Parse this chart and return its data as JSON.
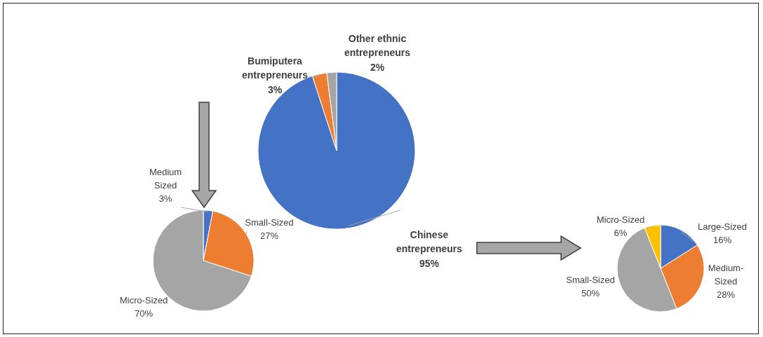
{
  "chart_data": [
    {
      "type": "pie",
      "categories": [
        "Chinese entrepreneurs",
        "Bumiputera entrepreneurs",
        "Other ethnic entrepreneurs"
      ],
      "values": [
        95,
        3,
        2
      ],
      "colors": [
        "#4472c4",
        "#ed7d31",
        "#a5a5a5"
      ],
      "value_labels": [
        "95%",
        "3%",
        "2%"
      ]
    },
    {
      "type": "pie",
      "categories": [
        "Medium Sized",
        "Small-Sized",
        "Micro-Sized"
      ],
      "values": [
        3,
        27,
        70
      ],
      "colors": [
        "#4472c4",
        "#ed7d31",
        "#a5a5a5"
      ],
      "value_labels": [
        "3%",
        "27%",
        "70%"
      ]
    },
    {
      "type": "pie",
      "categories": [
        "Large-Sized",
        "Medium-Sized",
        "Small-Sized",
        "Micro-Sized"
      ],
      "values": [
        16,
        28,
        50,
        6
      ],
      "colors": [
        "#4472c4",
        "#ed7d31",
        "#a5a5a5",
        "#ffc000"
      ],
      "value_labels": [
        "16%",
        "28%",
        "50%",
        "6%"
      ]
    }
  ]
}
